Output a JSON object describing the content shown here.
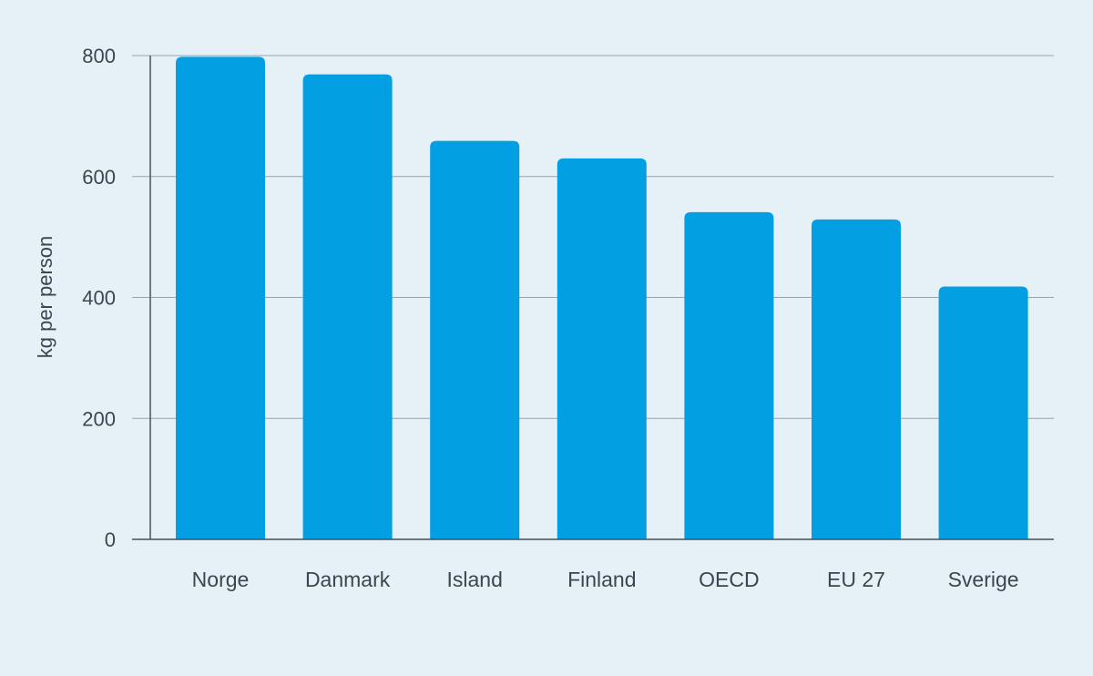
{
  "colors": {
    "background": "#e5f0f7",
    "bar": "#039fe3",
    "gridline": "#9aa4ad",
    "axis": "#4a4f55",
    "text": "#3b4652"
  },
  "chart_data": {
    "type": "bar",
    "title": "",
    "xlabel": "",
    "ylabel": "kg per person",
    "categories": [
      "Norge",
      "Danmark",
      "Island",
      "Finland",
      "OECD",
      "EU 27",
      "Sverige"
    ],
    "values": [
      798,
      769,
      659,
      630,
      541,
      529,
      418
    ],
    "ylim": [
      0,
      800
    ],
    "yticks": [
      0,
      200,
      400,
      600,
      800
    ],
    "ytick_labels": [
      "0",
      "200",
      "400",
      "600",
      "800"
    ],
    "grid": true,
    "legend": "none"
  }
}
